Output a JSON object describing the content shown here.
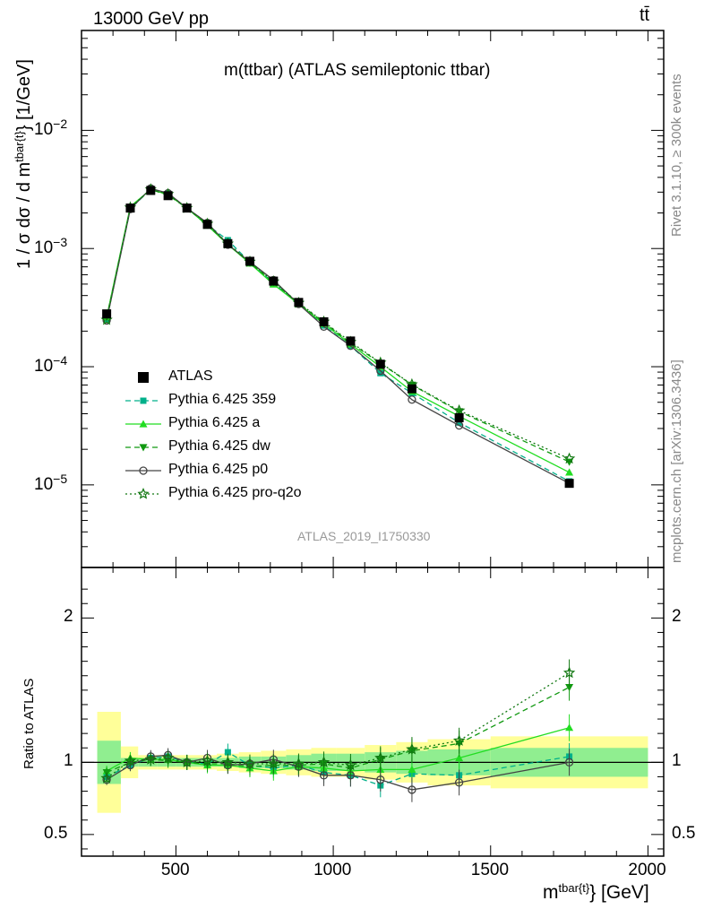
{
  "header": {
    "left": "13000 GeV pp",
    "right": "tt̄"
  },
  "side_text": {
    "top": "Rivet 3.1.10, ≥ 300k events",
    "bottom": "mcplots.cern.ch [arXiv:1306.3436]"
  },
  "main_title": "m(ttbar) (ATLAS semileptonic ttbar)",
  "watermark": "ATLAS_2019_I1750330",
  "ylabel_main": {
    "base": "1 / σ dσ / d m",
    "sup": "tbar{t}",
    "tail": "} [1/GeV]"
  },
  "ylabel_ratio": "Ratio to ATLAS",
  "xlabel": {
    "base": "m",
    "sup": "tbar{t}",
    "tail": "} [GeV]"
  },
  "colors": {
    "ATLAS": "#000000",
    "Pythia 6.425 359": "#00b08a",
    "Pythia 6.425 a": "#22dd22",
    "Pythia 6.425 dw": "#119911",
    "Pythia 6.425 p0": "#444444",
    "Pythia 6.425 pro-q2o": "#117711",
    "band_inner": "#90ee90",
    "band_outer": "#ffff99"
  },
  "chart_data": {
    "type": "line",
    "xlim": [
      200,
      2050
    ],
    "ylim_main": [
      2e-06,
      0.07
    ],
    "ylim_ratio": [
      0.35,
      2.35
    ],
    "yscale_main": "log",
    "main_ticks": [
      {
        "label": "10",
        "exp": "−2",
        "value": 0.01
      },
      {
        "label": "10",
        "exp": "−3",
        "value": 0.001
      },
      {
        "label": "10",
        "exp": "−4",
        "value": 0.0001
      },
      {
        "label": "10",
        "exp": "−5",
        "value": 1e-05
      }
    ],
    "ratio_ticks": [
      {
        "label": "2",
        "value": 2
      },
      {
        "label": "1",
        "value": 1
      },
      {
        "label": "0.5",
        "value": 0.5
      }
    ],
    "x_ticks": [
      {
        "label": "500",
        "value": 500
      },
      {
        "label": "1000",
        "value": 1000
      },
      {
        "label": "1500",
        "value": 1500
      },
      {
        "label": "2000",
        "value": 2000
      }
    ],
    "bins": [
      [
        250,
        325
      ],
      [
        325,
        380
      ],
      [
        380,
        440
      ],
      [
        440,
        500
      ],
      [
        500,
        570
      ],
      [
        570,
        630
      ],
      [
        630,
        700
      ],
      [
        700,
        770
      ],
      [
        770,
        850
      ],
      [
        850,
        930
      ],
      [
        930,
        1010
      ],
      [
        1010,
        1100
      ],
      [
        1100,
        1200
      ],
      [
        1200,
        1300
      ],
      [
        1300,
        1500
      ],
      [
        1500,
        2000
      ]
    ],
    "x": [
      280,
      355,
      420,
      475,
      535,
      600,
      665,
      735,
      810,
      890,
      970,
      1055,
      1150,
      1250,
      1400,
      1750
    ],
    "data": {
      "name": "ATLAS",
      "values": [
        0.00028,
        0.0022,
        0.0031,
        0.0028,
        0.0022,
        0.0016,
        0.0011,
        0.00078,
        0.00053,
        0.00035,
        0.00024,
        0.000165,
        0.000105,
        6.5e-05,
        3.7e-05,
        1.03e-05
      ]
    },
    "band_inner": [
      0.15,
      0.03,
      0.03,
      0.03,
      0.03,
      0.03,
      0.03,
      0.04,
      0.04,
      0.05,
      0.06,
      0.06,
      0.07,
      0.08,
      0.09,
      0.1
    ],
    "band_outer": [
      0.35,
      0.11,
      0.05,
      0.05,
      0.05,
      0.05,
      0.06,
      0.07,
      0.08,
      0.09,
      0.1,
      0.1,
      0.12,
      0.14,
      0.16,
      0.18
    ],
    "series": [
      {
        "name": "Pythia 6.425 359",
        "marker": "square",
        "dash": "6,4",
        "ratio": [
          0.9,
          0.98,
          1.03,
          1.04,
          1.0,
          0.99,
          1.07,
          0.98,
          0.96,
          0.98,
          0.93,
          0.91,
          0.84,
          0.92,
          0.91,
          1.04
        ]
      },
      {
        "name": "Pythia 6.425 a",
        "marker": "triangle-up",
        "dash": "",
        "ratio": [
          0.94,
          1.03,
          1.02,
          1.02,
          1.0,
          0.98,
          0.98,
          0.96,
          0.94,
          0.97,
          0.96,
          0.94,
          0.95,
          0.95,
          1.03,
          1.24
        ]
      },
      {
        "name": "Pythia 6.425 dw",
        "marker": "triangle-down",
        "dash": "6,4",
        "ratio": [
          0.93,
          1.0,
          1.02,
          1.01,
          1.0,
          0.99,
          0.99,
          0.97,
          0.98,
          0.98,
          0.99,
          0.96,
          1.02,
          1.08,
          1.13,
          1.52
        ]
      },
      {
        "name": "Pythia 6.425 p0",
        "marker": "circle",
        "dash": "",
        "ratio": [
          0.88,
          0.98,
          1.04,
          1.05,
          1.0,
          1.03,
          0.98,
          0.99,
          1.02,
          0.97,
          0.91,
          0.91,
          0.88,
          0.81,
          0.86,
          1.0
        ]
      },
      {
        "name": "Pythia 6.425 pro-q2o",
        "marker": "star",
        "dash": "2,3",
        "ratio": [
          0.89,
          1.01,
          1.02,
          1.03,
          1.0,
          1.01,
          1.0,
          0.99,
          0.99,
          0.99,
          1.0,
          0.98,
          1.03,
          1.09,
          1.15,
          1.62
        ]
      }
    ]
  }
}
